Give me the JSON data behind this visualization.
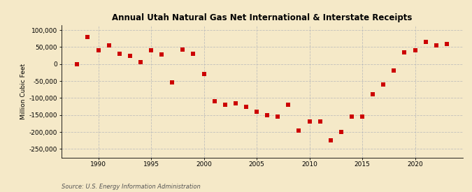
{
  "title": "Annual Utah Natural Gas Net International & Interstate Receipts",
  "ylabel": "Million Cubic Feet",
  "source": "Source: U.S. Energy Information Administration",
  "background_color": "#f5e9c8",
  "years": [
    1988,
    1989,
    1990,
    1991,
    1992,
    1993,
    1994,
    1995,
    1996,
    1997,
    1998,
    1999,
    2000,
    2001,
    2002,
    2003,
    2004,
    2005,
    2006,
    2007,
    2008,
    2009,
    2010,
    2011,
    2012,
    2013,
    2014,
    2015,
    2016,
    2017,
    2018,
    2019,
    2020,
    2021,
    2022,
    2023
  ],
  "values": [
    0,
    80000,
    40000,
    55000,
    30000,
    25000,
    5000,
    40000,
    28000,
    -55000,
    42000,
    30000,
    -30000,
    -110000,
    -120000,
    -115000,
    -125000,
    -140000,
    -150000,
    -155000,
    -120000,
    -195000,
    -170000,
    -170000,
    -225000,
    -200000,
    -155000,
    -155000,
    -90000,
    -60000,
    -20000,
    35000,
    40000,
    65000,
    55000,
    58000
  ],
  "marker_color": "#cc0000",
  "marker_size": 4,
  "ylim": [
    -275000,
    115000
  ],
  "yticks": [
    100000,
    50000,
    0,
    -50000,
    -100000,
    -150000,
    -200000,
    -250000
  ],
  "grid_color": "#bbbbbb",
  "xtick_start": 1990,
  "xtick_end": 2020,
  "xtick_step": 5
}
